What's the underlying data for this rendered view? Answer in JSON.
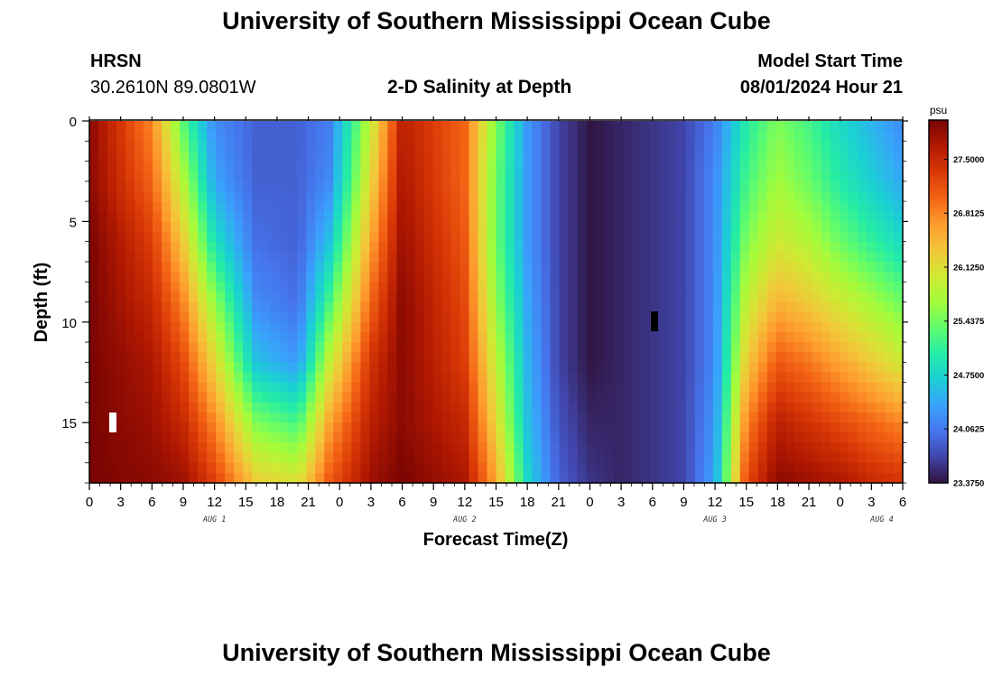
{
  "page": {
    "title": "University of Southern Mississippi Ocean Cube",
    "title_repeat": "University of Southern Mississippi Ocean Cube",
    "station": "HRSN",
    "coordinates": "30.2610N  89.0801W",
    "subtitle": "2-D Salinity at Depth",
    "model_label": "Model Start Time",
    "model_time": "08/01/2024 Hour 21"
  },
  "chart_data": {
    "type": "heatmap",
    "title": "2-D Salinity at Depth",
    "xlabel": "Forecast Time(Z)",
    "ylabel": "Depth (ft)",
    "x_tick_labels": [
      "0",
      "3",
      "6",
      "9",
      "12",
      "15",
      "18",
      "21",
      "0",
      "3",
      "6",
      "9",
      "12",
      "15",
      "18",
      "21",
      "0",
      "3",
      "6",
      "9",
      "12",
      "15",
      "18",
      "21",
      "0",
      "3",
      "6"
    ],
    "day_labels": [
      "AUG 1",
      "AUG 2",
      "AUG 3",
      "AUG 4"
    ],
    "y_tick_labels": [
      "0",
      "5",
      "10",
      "15"
    ],
    "ylim_ft": [
      0,
      18
    ],
    "x_range_hours": [
      0,
      78
    ],
    "colorbar": {
      "unit": "psu",
      "range": [
        23.375,
        28.0
      ],
      "tick_labels": [
        "27.5000",
        "26.8125",
        "26.1250",
        "25.4375",
        "24.7500",
        "24.0625",
        "23.3750"
      ],
      "colors": [
        "#30123b",
        "#4145ab",
        "#4675ed",
        "#39a2fc",
        "#1bcfd4",
        "#24eca6",
        "#61fc6c",
        "#a4fc3b",
        "#d1e834",
        "#f3c63a",
        "#fe9b2d",
        "#f36315",
        "#d93806",
        "#b11901",
        "#7a0403"
      ]
    },
    "salinity_grid": {
      "x_hours": [
        0,
        6,
        9,
        12,
        16,
        20,
        23,
        27,
        30,
        36,
        39,
        42,
        45,
        48,
        51,
        54,
        57,
        60,
        63,
        66,
        69,
        72,
        75,
        78
      ],
      "depth_ft": [
        0,
        3,
        6,
        9,
        12,
        15,
        18
      ],
      "values_psu": [
        [
          27.9,
          26.8,
          25.3,
          24.2,
          23.9,
          23.9,
          24.1,
          25.9,
          27.6,
          27.0,
          25.5,
          24.3,
          23.7,
          23.4,
          23.5,
          23.6,
          23.7,
          24.1,
          25.0,
          25.5,
          25.2,
          24.8,
          24.5,
          24.2
        ],
        [
          27.9,
          27.0,
          25.8,
          24.4,
          23.9,
          23.9,
          24.2,
          26.2,
          27.7,
          27.0,
          25.4,
          24.3,
          23.7,
          23.4,
          23.5,
          23.6,
          23.7,
          24.2,
          25.2,
          25.7,
          25.4,
          25.0,
          24.7,
          24.4
        ],
        [
          28.0,
          27.3,
          26.3,
          24.9,
          24.0,
          23.9,
          24.6,
          26.6,
          27.8,
          27.1,
          25.4,
          24.3,
          23.7,
          23.4,
          23.5,
          23.6,
          23.7,
          24.2,
          25.5,
          26.0,
          25.8,
          25.4,
          25.1,
          24.8
        ],
        [
          28.0,
          27.5,
          26.8,
          25.6,
          24.2,
          24.0,
          25.2,
          27.0,
          27.9,
          27.2,
          25.6,
          24.4,
          23.7,
          23.4,
          23.5,
          23.6,
          23.7,
          24.2,
          25.9,
          26.5,
          26.3,
          26.0,
          25.7,
          25.4
        ],
        [
          28.0,
          27.7,
          27.2,
          26.2,
          24.6,
          24.3,
          25.9,
          27.4,
          27.9,
          27.3,
          25.9,
          24.5,
          23.7,
          23.4,
          23.5,
          23.6,
          23.7,
          24.2,
          26.3,
          27.1,
          26.9,
          26.6,
          26.3,
          26.0
        ],
        [
          28.0,
          27.8,
          27.5,
          26.8,
          25.5,
          25.2,
          26.6,
          27.6,
          27.9,
          27.5,
          26.2,
          24.6,
          23.8,
          23.5,
          23.5,
          23.6,
          23.7,
          24.3,
          26.8,
          27.6,
          27.4,
          27.2,
          27.0,
          26.8
        ],
        [
          28.0,
          27.9,
          27.8,
          27.3,
          26.3,
          26.1,
          27.1,
          27.8,
          28.0,
          27.7,
          26.6,
          24.8,
          23.9,
          23.6,
          23.5,
          23.6,
          23.7,
          24.4,
          27.2,
          27.9,
          27.8,
          27.7,
          27.5,
          27.4
        ]
      ]
    }
  }
}
